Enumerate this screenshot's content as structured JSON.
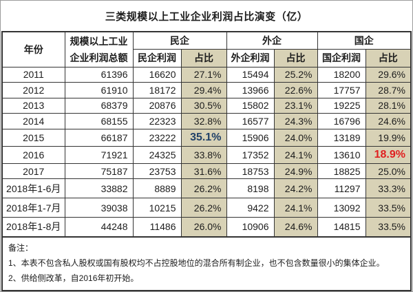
{
  "title": "三类规模以上工业企业利润占比演变（亿）",
  "table": {
    "headers": {
      "year": "年份",
      "total_line1": "规模以上工业",
      "total_line2": "企业利润总额",
      "groups": [
        {
          "name": "民企",
          "profit": "民企利润",
          "share": "占比"
        },
        {
          "name": "外企",
          "profit": "外企利润",
          "share": "占比"
        },
        {
          "name": "国企",
          "profit": "国企利润",
          "share": "占比"
        }
      ]
    },
    "rows": [
      [
        "2011",
        "61396",
        "16620",
        "27.1%",
        "15494",
        "25.2%",
        "18200",
        "29.6%"
      ],
      [
        "2012",
        "61910",
        "18172",
        "29.4%",
        "13966",
        "22.6%",
        "17757",
        "28.7%"
      ],
      [
        "2013",
        "68379",
        "20876",
        "30.5%",
        "15802",
        "23.1%",
        "19225",
        "28.1%"
      ],
      [
        "2014",
        "68155",
        "22323",
        "32.8%",
        "16577",
        "24.3%",
        "16796",
        "24.6%"
      ],
      [
        "2015",
        "66187",
        "23222",
        "35.1%",
        "15906",
        "24.0%",
        "13189",
        "19.9%"
      ],
      [
        "2016",
        "71921",
        "24325",
        "33.8%",
        "17352",
        "24.1%",
        "13610",
        "18.9%"
      ],
      [
        "2017",
        "75187",
        "23753",
        "31.6%",
        "18753",
        "24.9%",
        "18825",
        "25.0%"
      ],
      [
        "2018年1-6月",
        "33882",
        "8889",
        "26.2%",
        "8198",
        "24.2%",
        "11297",
        "33.3%"
      ],
      [
        "2018年1-7月",
        "39038",
        "10215",
        "26.2%",
        "9422",
        "24.1%",
        "13092",
        "33.5%"
      ],
      [
        "2018年1-8月",
        "44248",
        "11486",
        "26.0%",
        "10906",
        "24.6%",
        "14815",
        "33.5%"
      ]
    ],
    "highlights": [
      {
        "row": 4,
        "col": 3,
        "style": "blue"
      },
      {
        "row": 5,
        "col": 7,
        "style": "red"
      }
    ]
  },
  "notes": {
    "label": "备注：",
    "items": [
      "1、本表不包含私人股权或国有股权均不占控股地位的混合所有制企业，也不包含数量很小的集体企业。",
      "2、供给侧改革，自2016年初开始。"
    ]
  },
  "colors": {
    "share_bg": "#d8d2b6",
    "highlight_blue": "#1f4068",
    "highlight_red": "#e02020",
    "grid": "#333333"
  }
}
